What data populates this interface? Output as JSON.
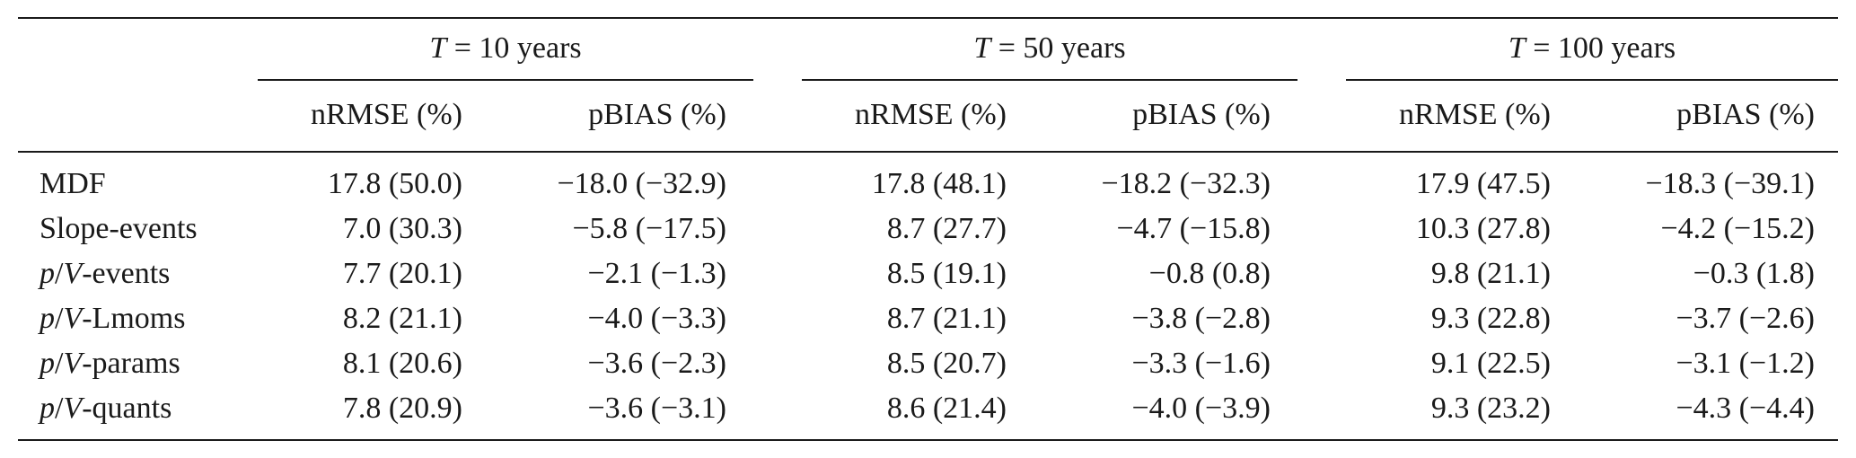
{
  "groups": [
    {
      "var": "T",
      "eq": " = ",
      "value": "10 years"
    },
    {
      "var": "T",
      "eq": " = ",
      "value": "50 years"
    },
    {
      "var": "T",
      "eq": " = ",
      "value": "100 years"
    }
  ],
  "subheaders": [
    "nRMSE (%)",
    "pBIAS (%)"
  ],
  "rows": [
    {
      "label": {
        "plain": "MDF"
      },
      "cells": [
        "17.8 (50.0)",
        "−18.0 (−32.9)",
        "17.8 (48.1)",
        "−18.2 (−32.3)",
        "17.9 (47.5)",
        "−18.3 (−39.1)"
      ]
    },
    {
      "label": {
        "plain": "Slope-events"
      },
      "cells": [
        "7.0 (30.3)",
        "−5.8 (−17.5)",
        "8.7 (27.7)",
        "−4.7 (−15.8)",
        "10.3 (27.8)",
        "−4.2 (−15.2)"
      ]
    },
    {
      "label": {
        "p": "p",
        "slash": "/",
        "v": "V",
        "suffix": "-events"
      },
      "cells": [
        "7.7 (20.1)",
        "−2.1 (−1.3)",
        "8.5 (19.1)",
        "−0.8 (0.8)",
        "9.8 (21.1)",
        "−0.3 (1.8)"
      ]
    },
    {
      "label": {
        "p": "p",
        "slash": "/",
        "v": "V",
        "suffix": "-Lmoms"
      },
      "cells": [
        "8.2 (21.1)",
        "−4.0 (−3.3)",
        "8.7 (21.1)",
        "−3.8 (−2.8)",
        "9.3 (22.8)",
        "−3.7 (−2.6)"
      ]
    },
    {
      "label": {
        "p": "p",
        "slash": "/",
        "v": "V",
        "suffix": "-params"
      },
      "cells": [
        "8.1 (20.6)",
        "−3.6 (−2.3)",
        "8.5 (20.7)",
        "−3.3 (−1.6)",
        "9.1 (22.5)",
        "−3.1 (−1.2)"
      ]
    },
    {
      "label": {
        "p": "p",
        "slash": "/",
        "v": "V",
        "suffix": "-quants"
      },
      "cells": [
        "7.8 (20.9)",
        "−3.6 (−3.1)",
        "8.6 (21.4)",
        "−4.0 (−3.9)",
        "9.3 (23.2)",
        "−4.3 (−4.4)"
      ]
    }
  ]
}
